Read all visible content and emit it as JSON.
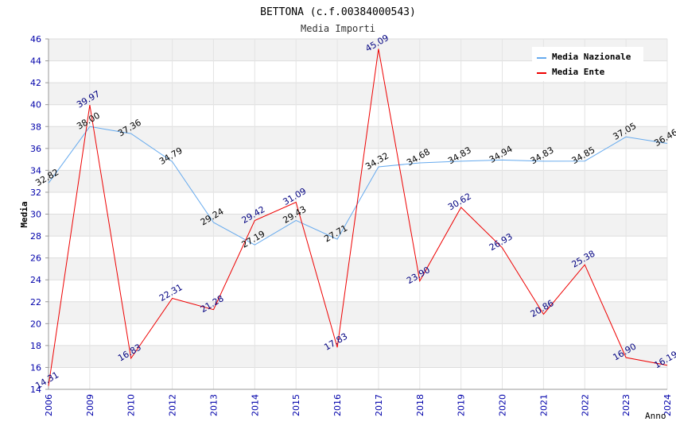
{
  "chart_data": {
    "type": "line",
    "title": "BETTONA (c.f.00384000543)",
    "subtitle": "Media Importi",
    "xlabel": "Anno",
    "ylabel": "Media",
    "categories": [
      "2006",
      "2009",
      "2010",
      "2012",
      "2013",
      "2014",
      "2015",
      "2016",
      "2017",
      "2018",
      "2019",
      "2020",
      "2021",
      "2022",
      "2023",
      "2024"
    ],
    "ylim": [
      14,
      46
    ],
    "yticks": [
      14,
      16,
      18,
      20,
      22,
      24,
      26,
      28,
      30,
      32,
      34,
      36,
      38,
      40,
      42,
      44,
      46
    ],
    "grid": "horizontal-bands",
    "legend_position": "top-right",
    "series": [
      {
        "name": "Media Nazionale",
        "color": "#66aaee",
        "label_color": "#000000",
        "values": [
          32.82,
          38.0,
          37.36,
          34.79,
          29.24,
          27.19,
          29.43,
          27.71,
          34.32,
          34.68,
          34.83,
          34.94,
          34.83,
          34.85,
          37.05,
          36.46
        ],
        "labels": [
          "32.82",
          "38.00",
          "37.36",
          "34.79",
          "29.24",
          "27.19",
          "29.43",
          "27.71",
          "34.32",
          "34.68",
          "34.83",
          "34.94",
          "34.83",
          "34.85",
          "37.05",
          "36.46"
        ]
      },
      {
        "name": "Media Ente",
        "color": "#ee0000",
        "label_color": "#000080",
        "values": [
          14.31,
          39.97,
          16.83,
          22.31,
          21.28,
          29.42,
          31.09,
          17.83,
          45.09,
          23.9,
          30.62,
          26.93,
          20.86,
          25.38,
          16.9,
          16.19
        ],
        "labels": [
          "14.31",
          "39.97",
          "16.83",
          "22.31",
          "21.28",
          "29.42",
          "31.09",
          "17.83",
          "45.09",
          "23.90",
          "30.62",
          "26.93",
          "20.86",
          "25.38",
          "16.90",
          "16.19"
        ]
      }
    ]
  }
}
